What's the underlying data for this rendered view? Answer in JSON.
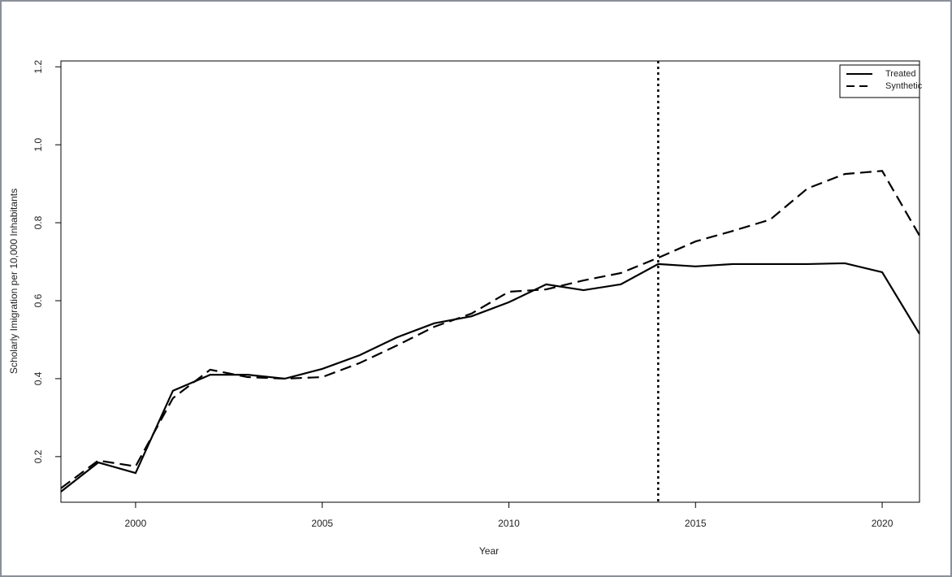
{
  "chart_data": {
    "type": "line",
    "x_label": "Year",
    "y_label": "Scholarly Imigration per 10,000 Inhabitants",
    "x": [
      1998,
      1999,
      2000,
      2001,
      2002,
      2003,
      2004,
      2005,
      2006,
      2007,
      2008,
      2009,
      2010,
      2011,
      2012,
      2013,
      2014,
      2015,
      2016,
      2017,
      2018,
      2019,
      2020,
      2021
    ],
    "series": [
      {
        "name": "Treated",
        "color": "#000000",
        "style": "solid",
        "values": [
          0.11,
          0.185,
          0.158,
          0.369,
          0.41,
          0.41,
          0.4,
          0.425,
          0.46,
          0.506,
          0.542,
          0.56,
          0.596,
          0.642,
          0.627,
          0.642,
          0.694,
          0.688,
          0.694,
          0.694,
          0.694,
          0.696,
          0.673,
          0.515
        ]
      },
      {
        "name": "Synthetic",
        "color": "#000000",
        "style": "dashed",
        "values": [
          0.119,
          0.19,
          0.175,
          0.35,
          0.423,
          0.404,
          0.4,
          0.404,
          0.44,
          0.485,
          0.533,
          0.567,
          0.623,
          0.629,
          0.652,
          0.671,
          0.71,
          0.752,
          0.779,
          0.808,
          0.888,
          0.925,
          0.933,
          0.767
        ]
      }
    ],
    "vline": 2014,
    "xlim": [
      1998,
      2021
    ],
    "ylim": [
      0.083,
      1.215
    ],
    "xticks": [
      2000,
      2005,
      2010,
      2015,
      2020
    ],
    "yticks": [
      0.2,
      0.4,
      0.6,
      0.8,
      1.0,
      1.2
    ],
    "legend": "top-right",
    "grid": false
  }
}
